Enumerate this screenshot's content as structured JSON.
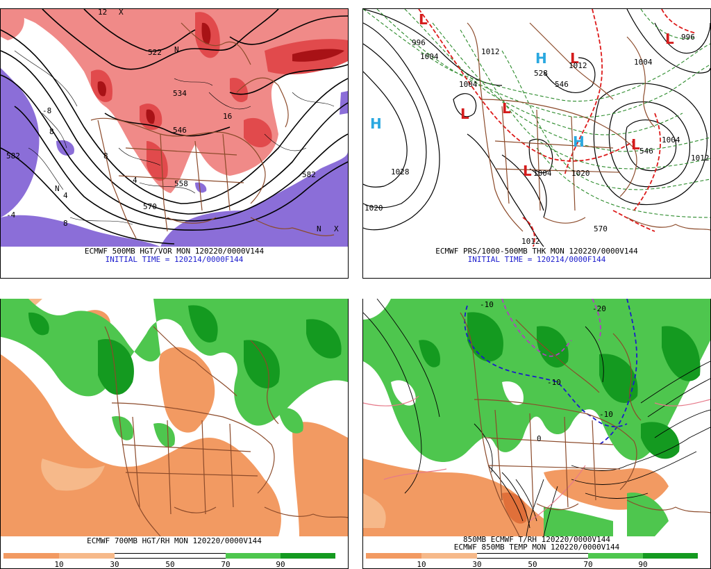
{
  "colors": {
    "vort_light": "#f08a88",
    "vort_mid": "#e14a4c",
    "vort_dark": "#a81216",
    "ridge_purple": "#8b6ed8",
    "rh_dry": "#f29a62",
    "rh_dry_light": "#f6b98a",
    "rh_moist": "#4ec64e",
    "rh_wet": "#149a20",
    "map_lines": "#8b4a2a",
    "high_blue": "#2aa8e0",
    "low_red": "#d41c1c",
    "thickness_green": "#2a8a2a",
    "thickness_red": "#dd1a1a"
  },
  "panel_500mb": {
    "caption1": "ECMWF 500MB HGT/VOR MON 120220/0000V144",
    "caption2": "INITIAL TIME = 120214/0000F144",
    "labels": [
      "522",
      "534",
      "546",
      "558",
      "570",
      "582",
      "582",
      "8",
      "8",
      "4",
      "4",
      "-4",
      "-8",
      "8",
      "12",
      "N",
      "N",
      "X",
      "X",
      "N",
      "16"
    ]
  },
  "panel_pressure": {
    "caption1": "ECMWF PRS/1000-500MB THK MON 120220/0000V144",
    "caption2": "INITIAL TIME = 120214/0000F144",
    "highs": [
      "H",
      "H",
      "H"
    ],
    "lows": [
      "L",
      "L",
      "L",
      "L",
      "L",
      "L",
      "L"
    ],
    "isobar_labels": [
      "1028",
      "1020",
      "1012",
      "1004",
      "996",
      "1012",
      "1004",
      "1020",
      "1004",
      "1012",
      "1004",
      "996",
      "1004",
      "1012"
    ],
    "thickness_labels": [
      "570",
      "528",
      "546",
      "546"
    ]
  },
  "panel_700mb": {
    "caption": "ECMWF 700MB HGT/RH MON 120220/0000V144",
    "colorbar_ticks": [
      "10",
      "30",
      "50",
      "70",
      "90"
    ]
  },
  "panel_850mb": {
    "caption1": "850MB ECMWF T/RH 120220/0000V144",
    "caption2": "ECMWF 850MB TEMP MON 120220/0000V144",
    "colorbar_ticks": [
      "10",
      "30",
      "50",
      "70",
      "90"
    ],
    "temp_labels": [
      "-10",
      "-10",
      "0",
      "-10",
      "-20"
    ]
  }
}
